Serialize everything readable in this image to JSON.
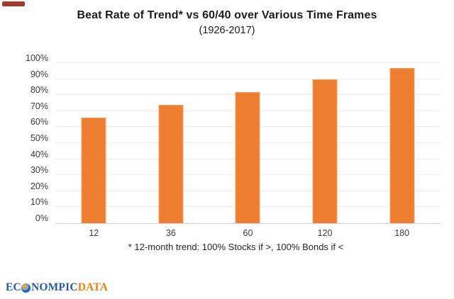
{
  "page": {
    "background": "#ffffff",
    "top_badge_color": "#a33a2a"
  },
  "chart_data": {
    "type": "bar",
    "title": "Beat Rate of Trend* vs 60/40 over Various Time Frames",
    "subtitle": "(1926-2017)",
    "categories": [
      "12",
      "36",
      "60",
      "120",
      "180"
    ],
    "values": [
      66,
      74,
      82,
      90,
      97
    ],
    "xlabel": "",
    "ylabel": "",
    "ylim": [
      0,
      100
    ],
    "ytick_step": 10,
    "ytick_labels": [
      "0%",
      "10%",
      "20%",
      "30%",
      "40%",
      "50%",
      "60%",
      "70%",
      "80%",
      "90%",
      "100%"
    ],
    "grid": true,
    "legend": false,
    "footnote": "* 12-month trend: 100% Stocks if >, 100% Bonds if <",
    "colors": {
      "bar_fill": "#ed7d31",
      "bar_edge": "#f3a263",
      "gridline": "#eeeeee",
      "axis_line": "#d6d6d6",
      "tick_text": "#3a3a3a",
      "title_text": "#1c1c1c"
    }
  },
  "footer_logo": {
    "part1": "EC",
    "globe_icon": "globe-icon",
    "part2": "NOMPIC",
    "part3": "DATA",
    "blue": "#2a5aa6",
    "orange": "#e8820c"
  }
}
